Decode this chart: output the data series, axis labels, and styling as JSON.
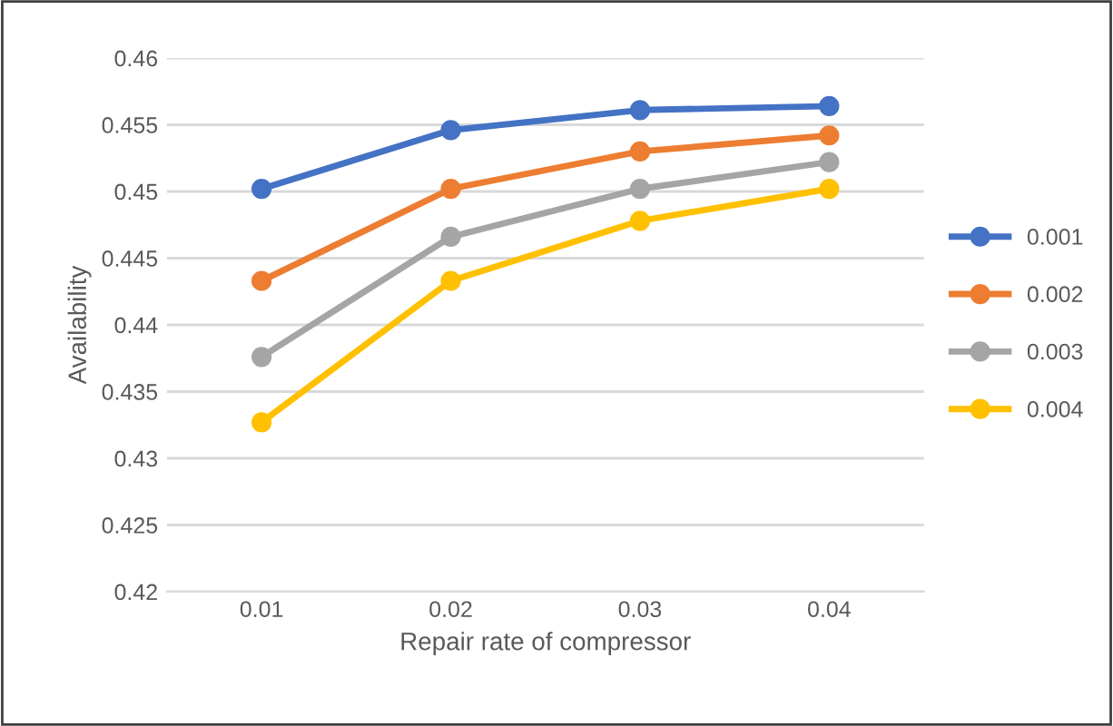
{
  "chart_data": {
    "type": "line",
    "xlabel": "Repair rate of compressor",
    "ylabel": "Availability",
    "categories": [
      "0.01",
      "0.02",
      "0.03",
      "0.04"
    ],
    "series": [
      {
        "name": "0.001",
        "color": "#4472c4",
        "values": [
          0.4502,
          0.4546,
          0.4561,
          0.4564
        ]
      },
      {
        "name": "0.002",
        "color": "#ed7d31",
        "values": [
          0.4433,
          0.4502,
          0.453,
          0.4542
        ]
      },
      {
        "name": "0.003",
        "color": "#a5a5a5",
        "values": [
          0.4376,
          0.4466,
          0.4502,
          0.4522
        ]
      },
      {
        "name": "0.004",
        "color": "#ffc000",
        "values": [
          0.4327,
          0.4433,
          0.4478,
          0.4502
        ]
      }
    ],
    "ylim": [
      0.42,
      0.46
    ],
    "yticks": [
      0.42,
      0.425,
      0.43,
      0.435,
      0.44,
      0.445,
      0.45,
      0.455,
      0.46
    ],
    "grid": "y",
    "legend": "right",
    "marker": "circle",
    "line_style": "solid"
  }
}
